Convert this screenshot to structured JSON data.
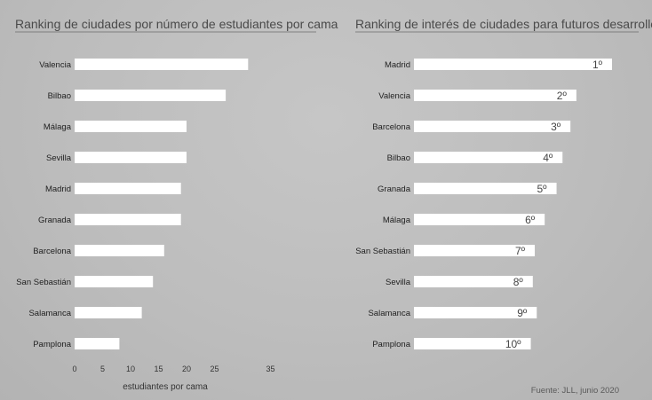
{
  "chart_data": [
    {
      "type": "bar",
      "orientation": "horizontal",
      "title": "Ranking de ciudades por número de estudiantes por cama",
      "xlabel": "estudiantes por cama",
      "categories": [
        "Valencia",
        "Bilbao",
        "Málaga",
        "Sevilla",
        "Madrid",
        "Granada",
        "Barcelona",
        "San Sebastián",
        "Salamanca",
        "Pamplona"
      ],
      "values": [
        31,
        27,
        20,
        20,
        19,
        19,
        16,
        14,
        12,
        8
      ],
      "xticks": [
        "0",
        "5",
        "10",
        "15",
        "20",
        "25",
        "35"
      ],
      "xlim": [
        0,
        35
      ],
      "bar_color": "#ffffff",
      "grid": false
    },
    {
      "type": "bar",
      "orientation": "horizontal",
      "title": "Ranking de interés de ciudades para futuros desarrollos",
      "categories": [
        "Madrid",
        "Valencia",
        "Barcelona",
        "Bilbao",
        "Granada",
        "Málaga",
        "San Sebastián",
        "Sevilla",
        "Salamanca",
        "Pamplona"
      ],
      "rank_labels": [
        "1º",
        "2º",
        "3º",
        "4º",
        "5º",
        "6º",
        "7º",
        "8º",
        "9º",
        "10º"
      ],
      "values": [
        10,
        8.2,
        7.9,
        7.5,
        7.2,
        6.6,
        6.1,
        6.0,
        6.2,
        5.9
      ],
      "bar_color": "#ffffff",
      "grid": false
    }
  ],
  "source": "Fuente: JLL, junio 2020"
}
